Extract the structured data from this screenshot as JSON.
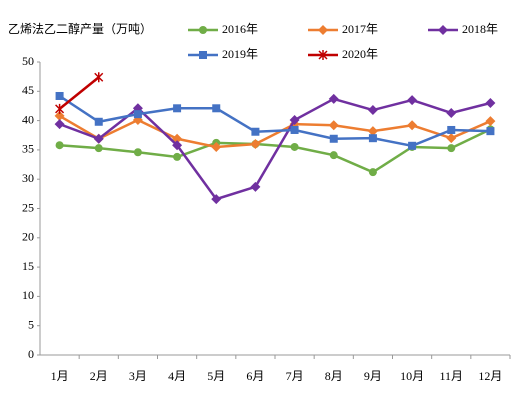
{
  "chart_data": {
    "type": "line",
    "title": "乙烯法乙二醇产量（万吨）",
    "categories": [
      "1月",
      "2月",
      "3月",
      "4月",
      "5月",
      "6月",
      "7月",
      "8月",
      "9月",
      "10月",
      "11月",
      "12月"
    ],
    "series": [
      {
        "name": "2016年",
        "color": "#70ad47",
        "marker": "circle",
        "values": [
          35.8,
          35.3,
          34.6,
          33.8,
          36.2,
          36.0,
          35.5,
          34.1,
          31.2,
          35.5,
          35.3,
          38.5
        ]
      },
      {
        "name": "2017年",
        "color": "#ed7d31",
        "marker": "diamond",
        "values": [
          40.8,
          36.9,
          40.1,
          36.9,
          35.5,
          36.0,
          39.4,
          39.2,
          38.2,
          39.2,
          37.0,
          39.9
        ]
      },
      {
        "name": "2018年",
        "color": "#7030a0",
        "marker": "diamond",
        "values": [
          39.4,
          36.9,
          42.1,
          35.8,
          26.6,
          28.7,
          40.1,
          43.7,
          41.8,
          43.5,
          41.3,
          43.0
        ]
      },
      {
        "name": "2019年",
        "color": "#4472c4",
        "marker": "square",
        "values": [
          44.2,
          39.8,
          41.1,
          42.1,
          42.1,
          38.1,
          38.4,
          36.9,
          37.0,
          35.7,
          38.4,
          38.2
        ]
      },
      {
        "name": "2020年",
        "color": "#c00000",
        "marker": "star",
        "values": [
          42.0,
          47.4,
          null,
          null,
          null,
          null,
          null,
          null,
          null,
          null,
          null,
          null
        ]
      }
    ],
    "ylim": [
      0,
      50
    ],
    "yticks": [
      0,
      5,
      10,
      15,
      20,
      25,
      30,
      35,
      40,
      45,
      50
    ],
    "grid": false
  }
}
